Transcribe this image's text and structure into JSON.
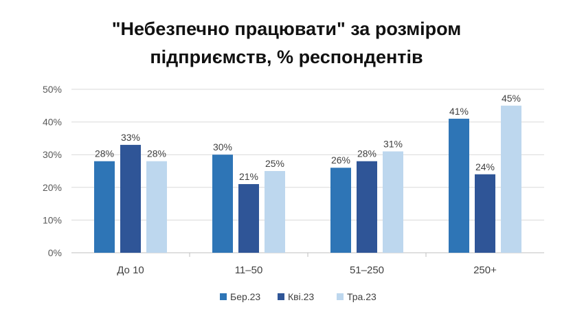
{
  "chart_data": {
    "type": "bar",
    "title_lines": [
      "\"Небезпечно працювати\" за розміром",
      "підприємств, % респондентів"
    ],
    "categories": [
      "До 10",
      "11–50",
      "51–250",
      "250+"
    ],
    "series": [
      {
        "name": "Бер.23",
        "values": [
          28,
          30,
          26,
          41
        ],
        "color": "#2E75B6"
      },
      {
        "name": "Кві.23",
        "values": [
          33,
          21,
          28,
          24
        ],
        "color": "#2F5597"
      },
      {
        "name": "Тра.23",
        "values": [
          28,
          25,
          31,
          45
        ],
        "color": "#BDD7EE"
      }
    ],
    "value_suffix": "%",
    "ylim": [
      0,
      50
    ],
    "yticks": [
      0,
      10,
      20,
      30,
      40,
      50
    ],
    "ytick_labels": [
      "0%",
      "10%",
      "20%",
      "30%",
      "40%",
      "50%"
    ],
    "grid": true,
    "legend_position": "bottom",
    "data_labels": true
  }
}
